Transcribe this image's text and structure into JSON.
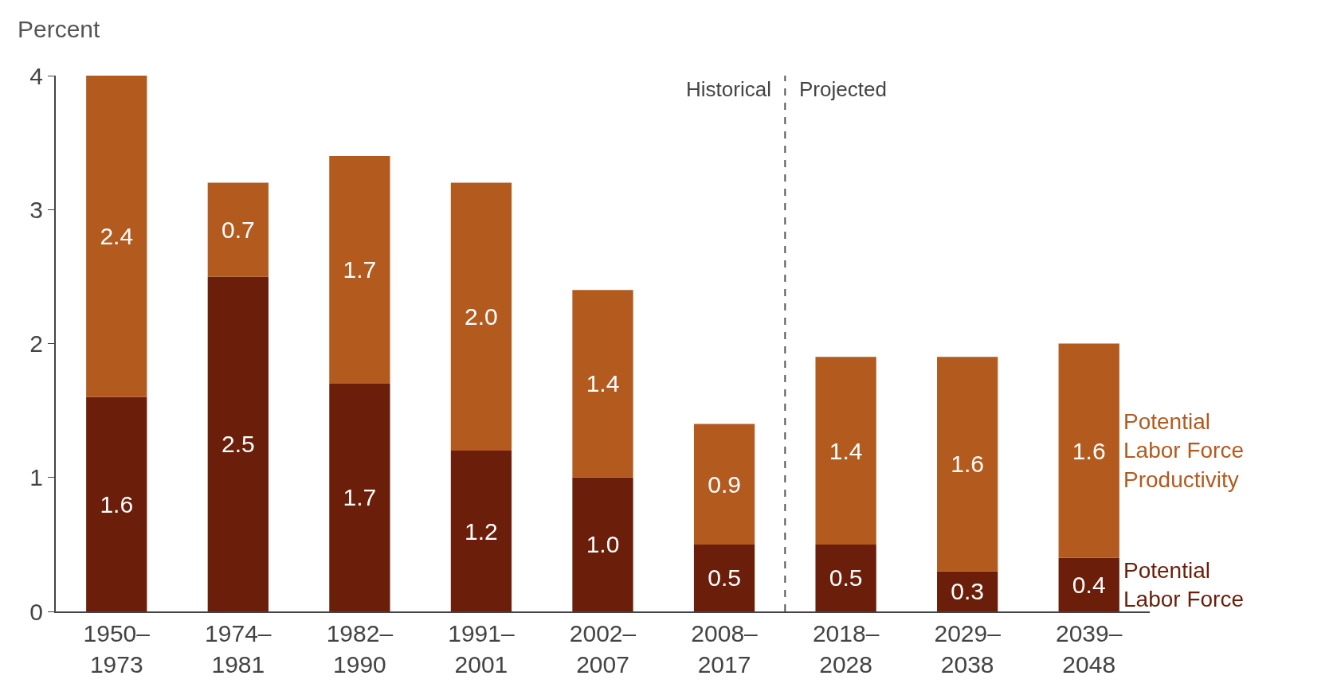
{
  "chart_data": {
    "type": "bar",
    "stacked": true,
    "ylabel": "Percent",
    "categories": [
      "1950–\n1973",
      "1974–\n1981",
      "1982–\n1990",
      "1991–\n2001",
      "2002–\n2007",
      "2008–\n2017",
      "2018–\n2028",
      "2029–\n2038",
      "2039–\n2048"
    ],
    "series": [
      {
        "name": "Potential Labor Force",
        "color": "#6b1e0a",
        "values": [
          1.6,
          2.5,
          1.7,
          1.2,
          1.0,
          0.5,
          0.5,
          0.3,
          0.4
        ],
        "value_labels": [
          "1.6",
          "2.5",
          "1.7",
          "1.2",
          "1.0",
          "0.5",
          "0.5",
          "0.3",
          "0.4"
        ]
      },
      {
        "name": "Potential Labor Force Productivity",
        "color": "#b35a1f",
        "values": [
          2.4,
          0.7,
          1.7,
          2.0,
          1.4,
          0.9,
          1.4,
          1.6,
          1.6
        ],
        "value_labels": [
          "2.4",
          "0.7",
          "1.7",
          "2.0",
          "1.4",
          "0.9",
          "1.4",
          "1.6",
          "1.6"
        ]
      }
    ],
    "ylim": [
      0,
      4
    ],
    "yticks": [
      0,
      1,
      2,
      3,
      4
    ],
    "legend": false,
    "annotations": [
      "Historical",
      "Projected"
    ]
  }
}
